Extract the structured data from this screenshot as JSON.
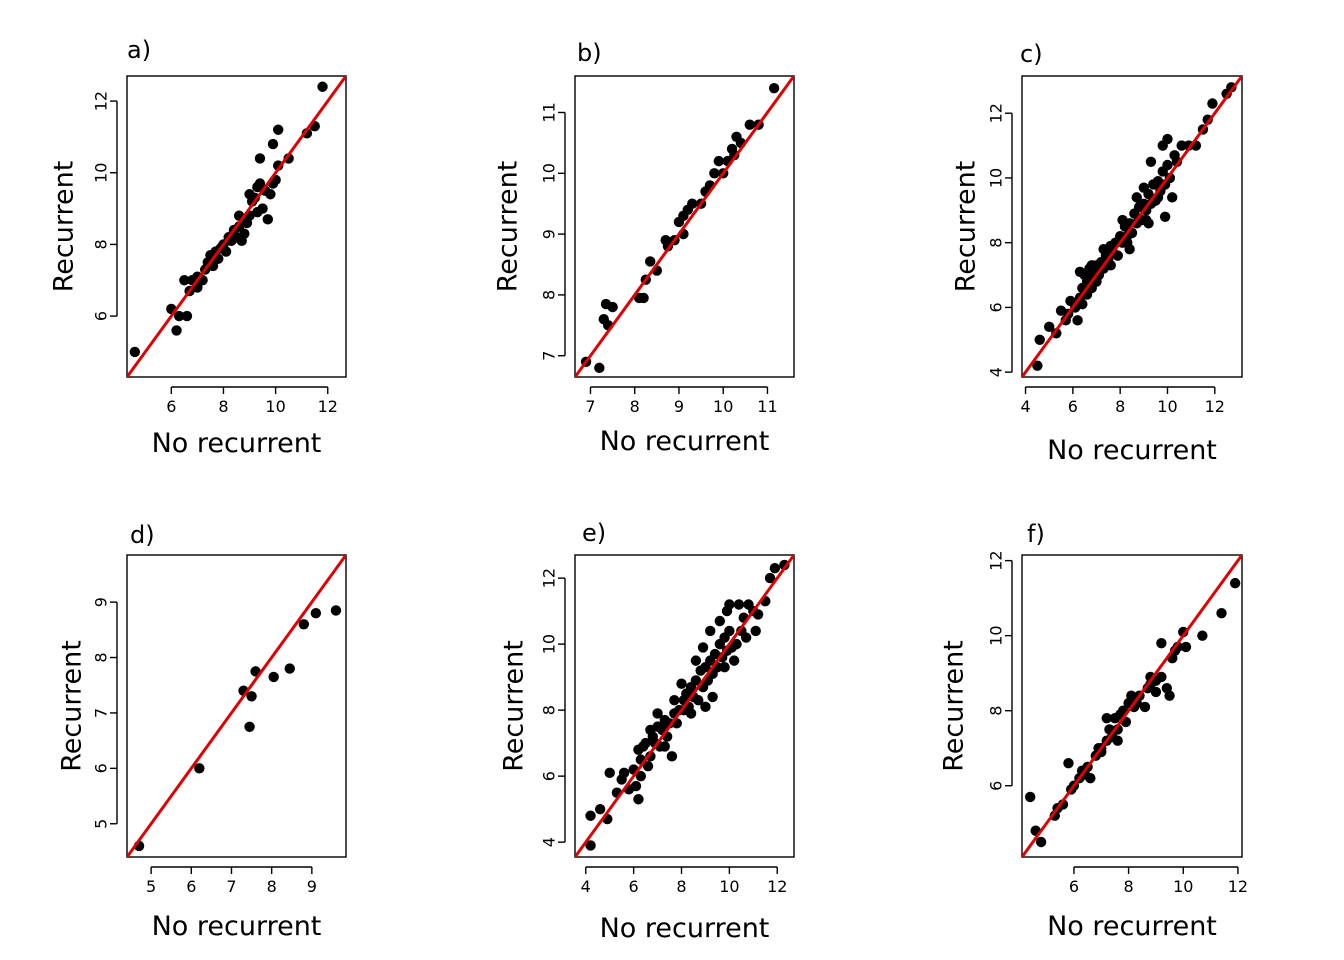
{
  "chart_data": [
    {
      "type": "scatter",
      "label": "a)",
      "xlabel": "No recurrent",
      "ylabel": "Recurrent",
      "xlim": [
        4.3,
        12.7
      ],
      "ylim": [
        4.3,
        12.7
      ],
      "xticks": [
        6,
        8,
        10,
        12
      ],
      "yticks": [
        6,
        8,
        10,
        12
      ],
      "reference_line": "y = x",
      "line_color": "#e00000",
      "points": [
        [
          4.6,
          5.0
        ],
        [
          6.0,
          6.2
        ],
        [
          6.2,
          5.6
        ],
        [
          6.3,
          6.0
        ],
        [
          6.6,
          6.0
        ],
        [
          6.5,
          7.0
        ],
        [
          6.7,
          6.7
        ],
        [
          6.8,
          7.0
        ],
        [
          7.0,
          7.1
        ],
        [
          7.0,
          6.8
        ],
        [
          7.2,
          7.0
        ],
        [
          7.3,
          7.3
        ],
        [
          7.4,
          7.5
        ],
        [
          7.5,
          7.7
        ],
        [
          7.6,
          7.4
        ],
        [
          7.7,
          7.8
        ],
        [
          7.8,
          7.6
        ],
        [
          7.9,
          7.9
        ],
        [
          8.0,
          8.0
        ],
        [
          8.1,
          7.8
        ],
        [
          8.2,
          8.2
        ],
        [
          8.3,
          8.1
        ],
        [
          8.4,
          8.4
        ],
        [
          8.5,
          8.2
        ],
        [
          8.6,
          8.5
        ],
        [
          8.7,
          8.1
        ],
        [
          8.8,
          8.3
        ],
        [
          8.9,
          8.6
        ],
        [
          9.0,
          8.8
        ],
        [
          9.1,
          9.2
        ],
        [
          9.2,
          9.3
        ],
        [
          9.3,
          8.9
        ],
        [
          9.4,
          9.7
        ],
        [
          9.5,
          9.0
        ],
        [
          9.6,
          9.5
        ],
        [
          9.7,
          8.7
        ],
        [
          9.8,
          9.4
        ],
        [
          9.9,
          9.7
        ],
        [
          10.0,
          9.8
        ],
        [
          10.1,
          10.2
        ],
        [
          9.4,
          10.4
        ],
        [
          9.9,
          10.8
        ],
        [
          10.1,
          11.2
        ],
        [
          10.5,
          10.4
        ],
        [
          11.2,
          11.1
        ],
        [
          11.5,
          11.3
        ],
        [
          11.8,
          12.4
        ],
        [
          9.0,
          9.4
        ],
        [
          8.6,
          8.8
        ],
        [
          9.3,
          9.6
        ]
      ]
    },
    {
      "type": "scatter",
      "label": "b)",
      "xlabel": "No recurrent",
      "ylabel": "Recurrent",
      "xlim": [
        6.65,
        11.6
      ],
      "ylim": [
        6.65,
        11.6
      ],
      "xticks": [
        7,
        8,
        9,
        10,
        11
      ],
      "yticks": [
        7,
        8,
        9,
        10,
        11
      ],
      "reference_line": "y = x",
      "line_color": "#e00000",
      "points": [
        [
          6.9,
          6.9
        ],
        [
          7.2,
          6.8
        ],
        [
          7.3,
          7.6
        ],
        [
          7.35,
          7.85
        ],
        [
          7.5,
          7.8
        ],
        [
          7.4,
          7.5
        ],
        [
          8.1,
          7.95
        ],
        [
          8.2,
          7.95
        ],
        [
          8.25,
          8.25
        ],
        [
          8.35,
          8.55
        ],
        [
          8.5,
          8.4
        ],
        [
          8.7,
          8.9
        ],
        [
          8.75,
          8.8
        ],
        [
          8.9,
          8.9
        ],
        [
          9.0,
          9.2
        ],
        [
          9.1,
          9.3
        ],
        [
          9.2,
          9.4
        ],
        [
          9.3,
          9.5
        ],
        [
          9.5,
          9.5
        ],
        [
          9.6,
          9.7
        ],
        [
          9.7,
          9.8
        ],
        [
          9.8,
          10.0
        ],
        [
          9.9,
          10.2
        ],
        [
          10.0,
          10.0
        ],
        [
          10.1,
          10.2
        ],
        [
          10.2,
          10.4
        ],
        [
          10.3,
          10.6
        ],
        [
          10.4,
          10.5
        ],
        [
          10.6,
          10.8
        ],
        [
          10.8,
          10.8
        ],
        [
          11.15,
          11.4
        ],
        [
          9.1,
          9.0
        ],
        [
          10.25,
          10.3
        ]
      ]
    },
    {
      "type": "scatter",
      "label": "c)",
      "xlabel": "No recurrent",
      "ylabel": "Recurrent",
      "xlim": [
        3.85,
        13.15
      ],
      "ylim": [
        3.85,
        13.15
      ],
      "xticks": [
        4,
        6,
        8,
        10,
        12
      ],
      "yticks": [
        4,
        6,
        8,
        10,
        12
      ],
      "reference_line": "y = x",
      "line_color": "#e00000",
      "points": [
        [
          4.5,
          4.2
        ],
        [
          4.6,
          5.0
        ],
        [
          5.0,
          5.4
        ],
        [
          5.3,
          5.2
        ],
        [
          5.5,
          5.9
        ],
        [
          5.7,
          5.6
        ],
        [
          5.9,
          6.2
        ],
        [
          6.1,
          6.0
        ],
        [
          6.2,
          5.6
        ],
        [
          6.3,
          6.3
        ],
        [
          6.4,
          6.6
        ],
        [
          6.5,
          7.0
        ],
        [
          6.6,
          6.8
        ],
        [
          6.7,
          7.2
        ],
        [
          6.8,
          6.6
        ],
        [
          6.9,
          7.0
        ],
        [
          7.0,
          7.3
        ],
        [
          7.1,
          7.0
        ],
        [
          7.2,
          7.4
        ],
        [
          7.3,
          7.2
        ],
        [
          7.4,
          7.6
        ],
        [
          7.5,
          7.5
        ],
        [
          7.6,
          7.9
        ],
        [
          7.7,
          7.7
        ],
        [
          7.8,
          8.0
        ],
        [
          7.9,
          7.6
        ],
        [
          8.0,
          8.2
        ],
        [
          8.1,
          8.0
        ],
        [
          8.2,
          8.5
        ],
        [
          8.3,
          8.2
        ],
        [
          8.4,
          8.6
        ],
        [
          8.5,
          8.3
        ],
        [
          8.6,
          8.9
        ],
        [
          8.7,
          8.6
        ],
        [
          8.8,
          9.1
        ],
        [
          8.9,
          8.7
        ],
        [
          9.0,
          9.2
        ],
        [
          9.1,
          9.0
        ],
        [
          9.2,
          9.5
        ],
        [
          9.3,
          9.2
        ],
        [
          9.4,
          9.8
        ],
        [
          9.5,
          9.3
        ],
        [
          9.6,
          9.9
        ],
        [
          9.7,
          9.6
        ],
        [
          9.8,
          10.2
        ],
        [
          9.9,
          9.8
        ],
        [
          10.0,
          10.4
        ],
        [
          10.1,
          10.0
        ],
        [
          10.3,
          10.7
        ],
        [
          10.4,
          10.5
        ],
        [
          9.3,
          10.5
        ],
        [
          9.8,
          11.0
        ],
        [
          10.0,
          11.2
        ],
        [
          10.6,
          11.0
        ],
        [
          11.2,
          11.0
        ],
        [
          11.5,
          11.5
        ],
        [
          11.7,
          11.8
        ],
        [
          11.9,
          12.3
        ],
        [
          12.5,
          12.6
        ],
        [
          12.7,
          12.8
        ],
        [
          6.3,
          7.1
        ],
        [
          6.8,
          7.3
        ],
        [
          7.0,
          6.8
        ],
        [
          7.6,
          7.3
        ],
        [
          8.3,
          8.0
        ],
        [
          8.7,
          9.4
        ],
        [
          9.1,
          8.7
        ],
        [
          9.6,
          9.4
        ],
        [
          9.2,
          8.6
        ],
        [
          10.2,
          9.4
        ],
        [
          9.9,
          8.8
        ],
        [
          8.4,
          7.8
        ],
        [
          9.0,
          9.7
        ],
        [
          8.1,
          8.7
        ],
        [
          7.3,
          7.8
        ],
        [
          6.6,
          6.4
        ],
        [
          5.8,
          5.8
        ],
        [
          6.4,
          6.1
        ],
        [
          10.9,
          11.0
        ]
      ]
    },
    {
      "type": "scatter",
      "label": "d)",
      "xlabel": "No recurrent",
      "ylabel": "Recurrent",
      "xlim": [
        4.4,
        9.85
      ],
      "ylim": [
        4.4,
        9.85
      ],
      "xticks": [
        5,
        6,
        7,
        8,
        9
      ],
      "yticks": [
        5,
        6,
        7,
        8,
        9
      ],
      "reference_line": "y = x",
      "line_color": "#e00000",
      "points": [
        [
          4.7,
          4.6
        ],
        [
          6.2,
          6.0
        ],
        [
          7.3,
          7.4
        ],
        [
          7.45,
          6.75
        ],
        [
          7.5,
          7.3
        ],
        [
          7.6,
          7.75
        ],
        [
          8.05,
          7.65
        ],
        [
          8.45,
          7.8
        ],
        [
          8.8,
          8.6
        ],
        [
          9.1,
          8.8
        ],
        [
          9.6,
          8.85
        ]
      ]
    },
    {
      "type": "scatter",
      "label": "e)",
      "xlabel": "No recurrent",
      "ylabel": "Recurrent",
      "xlim": [
        3.55,
        12.7
      ],
      "ylim": [
        3.55,
        12.7
      ],
      "xticks": [
        4,
        6,
        8,
        10,
        12
      ],
      "yticks": [
        4,
        6,
        8,
        10,
        12
      ],
      "reference_line": "y = x",
      "line_color": "#e00000",
      "points": [
        [
          4.2,
          3.9
        ],
        [
          4.2,
          4.8
        ],
        [
          4.6,
          5.0
        ],
        [
          4.9,
          4.7
        ],
        [
          5.0,
          6.1
        ],
        [
          5.3,
          5.5
        ],
        [
          5.5,
          5.9
        ],
        [
          5.8,
          5.6
        ],
        [
          6.0,
          6.2
        ],
        [
          6.1,
          5.7
        ],
        [
          6.2,
          5.3
        ],
        [
          6.3,
          6.5
        ],
        [
          6.4,
          6.9
        ],
        [
          6.5,
          7.0
        ],
        [
          6.6,
          6.3
        ],
        [
          6.7,
          6.6
        ],
        [
          6.8,
          7.2
        ],
        [
          6.9,
          7.0
        ],
        [
          7.0,
          7.5
        ],
        [
          7.1,
          6.9
        ],
        [
          7.2,
          7.4
        ],
        [
          7.3,
          7.7
        ],
        [
          7.4,
          7.2
        ],
        [
          7.5,
          7.6
        ],
        [
          7.6,
          6.6
        ],
        [
          7.7,
          7.9
        ],
        [
          7.8,
          7.6
        ],
        [
          7.9,
          8.0
        ],
        [
          8.0,
          8.8
        ],
        [
          8.1,
          8.3
        ],
        [
          8.2,
          8.5
        ],
        [
          8.3,
          8.1
        ],
        [
          8.4,
          8.7
        ],
        [
          8.5,
          8.4
        ],
        [
          8.6,
          8.9
        ],
        [
          8.7,
          8.3
        ],
        [
          8.8,
          9.2
        ],
        [
          8.9,
          8.7
        ],
        [
          9.0,
          9.3
        ],
        [
          9.1,
          8.9
        ],
        [
          9.2,
          9.5
        ],
        [
          9.3,
          9.1
        ],
        [
          9.4,
          9.7
        ],
        [
          9.5,
          9.3
        ],
        [
          9.6,
          10.0
        ],
        [
          9.7,
          9.6
        ],
        [
          9.8,
          10.2
        ],
        [
          9.9,
          9.8
        ],
        [
          10.0,
          10.4
        ],
        [
          10.1,
          9.9
        ],
        [
          9.2,
          10.4
        ],
        [
          9.6,
          10.7
        ],
        [
          9.9,
          11.0
        ],
        [
          10.0,
          11.2
        ],
        [
          10.4,
          11.2
        ],
        [
          10.8,
          11.2
        ],
        [
          11.0,
          11.0
        ],
        [
          11.2,
          10.9
        ],
        [
          11.5,
          11.3
        ],
        [
          11.7,
          12.0
        ],
        [
          11.9,
          12.3
        ],
        [
          12.3,
          12.4
        ],
        [
          7.0,
          7.9
        ],
        [
          7.7,
          8.3
        ],
        [
          8.4,
          7.9
        ],
        [
          8.9,
          9.9
        ],
        [
          9.3,
          8.4
        ],
        [
          9.8,
          9.3
        ],
        [
          10.3,
          10.0
        ],
        [
          10.5,
          10.4
        ],
        [
          10.6,
          10.8
        ],
        [
          10.7,
          10.2
        ],
        [
          11.1,
          10.4
        ],
        [
          6.2,
          6.8
        ],
        [
          6.7,
          7.4
        ],
        [
          7.3,
          6.9
        ],
        [
          8.1,
          8.0
        ],
        [
          8.6,
          9.5
        ],
        [
          9.0,
          8.1
        ],
        [
          10.2,
          9.5
        ],
        [
          5.6,
          6.1
        ],
        [
          6.3,
          6.0
        ]
      ]
    },
    {
      "type": "scatter",
      "label": "f)",
      "xlabel": "No recurrent",
      "ylabel": "Recurrent",
      "xlim": [
        4.1,
        12.15
      ],
      "ylim": [
        4.1,
        12.15
      ],
      "xticks": [
        6,
        8,
        10,
        12
      ],
      "yticks": [
        6,
        8,
        10,
        12
      ],
      "reference_line": "y = x",
      "line_color": "#e00000",
      "points": [
        [
          4.4,
          5.7
        ],
        [
          4.6,
          4.8
        ],
        [
          4.8,
          4.5
        ],
        [
          5.3,
          5.2
        ],
        [
          5.4,
          5.4
        ],
        [
          5.6,
          5.5
        ],
        [
          5.8,
          6.6
        ],
        [
          5.9,
          5.9
        ],
        [
          6.0,
          6.0
        ],
        [
          6.2,
          6.2
        ],
        [
          6.3,
          6.4
        ],
        [
          6.5,
          6.5
        ],
        [
          6.6,
          6.2
        ],
        [
          6.8,
          6.8
        ],
        [
          6.9,
          7.0
        ],
        [
          7.0,
          6.9
        ],
        [
          7.2,
          7.2
        ],
        [
          7.3,
          7.5
        ],
        [
          7.4,
          7.3
        ],
        [
          7.5,
          7.8
        ],
        [
          7.6,
          7.5
        ],
        [
          7.7,
          7.9
        ],
        [
          7.8,
          8.0
        ],
        [
          7.9,
          7.7
        ],
        [
          8.0,
          8.2
        ],
        [
          8.1,
          8.4
        ],
        [
          8.2,
          8.1
        ],
        [
          8.4,
          8.4
        ],
        [
          8.6,
          8.1
        ],
        [
          8.7,
          8.6
        ],
        [
          8.8,
          8.9
        ],
        [
          9.0,
          8.5
        ],
        [
          9.2,
          9.8
        ],
        [
          9.2,
          8.9
        ],
        [
          9.4,
          8.6
        ],
        [
          9.5,
          8.4
        ],
        [
          9.6,
          9.4
        ],
        [
          9.7,
          9.6
        ],
        [
          9.8,
          9.7
        ],
        [
          10.0,
          10.1
        ],
        [
          10.1,
          9.7
        ],
        [
          10.7,
          10.0
        ],
        [
          11.4,
          10.6
        ],
        [
          11.9,
          11.4
        ],
        [
          7.0,
          7.0
        ],
        [
          7.2,
          7.8
        ],
        [
          7.6,
          7.2
        ],
        [
          8.3,
          8.2
        ],
        [
          9.0,
          8.8
        ],
        [
          6.4,
          6.3
        ],
        [
          8.8,
          8.7
        ]
      ]
    }
  ]
}
